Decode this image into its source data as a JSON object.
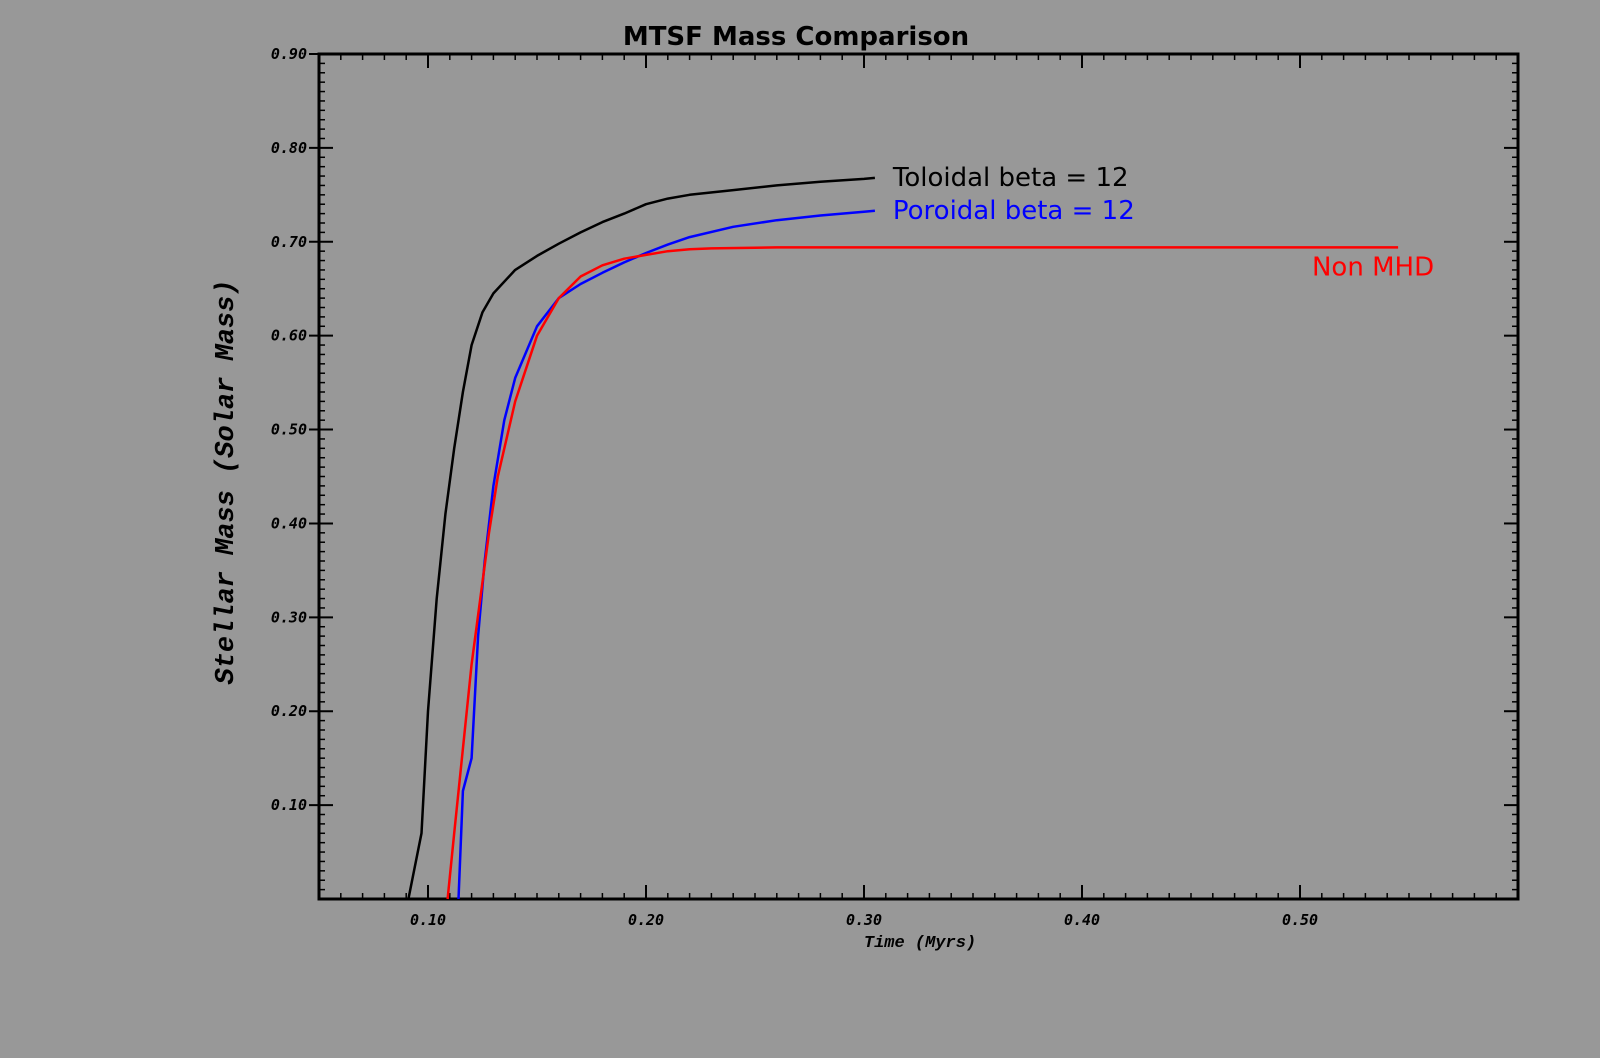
{
  "chart_data": {
    "type": "line",
    "title": "MTSF Mass Comparison",
    "xlabel": "Time (Myrs)",
    "ylabel": "Stellar Mass (Solar Mass)",
    "xlim": [
      0.05,
      0.6
    ],
    "ylim": [
      0.0,
      0.9
    ],
    "x_ticks": [
      {
        "value": 0.1,
        "label": "0.10"
      },
      {
        "value": 0.2,
        "label": "0.20"
      },
      {
        "value": 0.3,
        "label": "0.30"
      },
      {
        "value": 0.4,
        "label": "0.40"
      },
      {
        "value": 0.5,
        "label": "0.50"
      }
    ],
    "y_ticks": [
      {
        "value": 0.1,
        "label": "0.10"
      },
      {
        "value": 0.2,
        "label": "0.20"
      },
      {
        "value": 0.3,
        "label": "0.30"
      },
      {
        "value": 0.4,
        "label": "0.40"
      },
      {
        "value": 0.5,
        "label": "0.50"
      },
      {
        "value": 0.6,
        "label": "0.60"
      },
      {
        "value": 0.7,
        "label": "0.70"
      },
      {
        "value": 0.8,
        "label": "0.80"
      },
      {
        "value": 0.9,
        "label": "0.90"
      }
    ],
    "grid": false,
    "legend": "inline labels at series ends",
    "series": [
      {
        "name": "Toloidal beta = 12",
        "color": "#000000",
        "x": [
          0.091,
          0.097,
          0.1,
          0.104,
          0.108,
          0.112,
          0.116,
          0.12,
          0.125,
          0.13,
          0.14,
          0.15,
          0.16,
          0.17,
          0.18,
          0.19,
          0.2,
          0.21,
          0.22,
          0.24,
          0.26,
          0.28,
          0.3,
          0.305
        ],
        "y": [
          0.0,
          0.07,
          0.2,
          0.32,
          0.41,
          0.48,
          0.54,
          0.59,
          0.625,
          0.645,
          0.67,
          0.685,
          0.698,
          0.71,
          0.721,
          0.73,
          0.74,
          0.746,
          0.75,
          0.755,
          0.76,
          0.764,
          0.767,
          0.768
        ]
      },
      {
        "name": "Poroidal beta = 12",
        "color": "#0000ff",
        "x": [
          0.114,
          0.116,
          0.12,
          0.123,
          0.126,
          0.13,
          0.135,
          0.14,
          0.15,
          0.16,
          0.17,
          0.18,
          0.19,
          0.2,
          0.21,
          0.22,
          0.24,
          0.26,
          0.28,
          0.3,
          0.305
        ],
        "y": [
          0.0,
          0.115,
          0.15,
          0.28,
          0.36,
          0.44,
          0.51,
          0.555,
          0.61,
          0.64,
          0.655,
          0.667,
          0.678,
          0.688,
          0.697,
          0.705,
          0.716,
          0.723,
          0.728,
          0.732,
          0.733
        ]
      },
      {
        "name": "Non MHD",
        "color": "#ff0000",
        "x": [
          0.109,
          0.112,
          0.116,
          0.12,
          0.124,
          0.128,
          0.132,
          0.14,
          0.15,
          0.16,
          0.17,
          0.18,
          0.19,
          0.2,
          0.21,
          0.22,
          0.23,
          0.26,
          0.3,
          0.4,
          0.5,
          0.545
        ],
        "y": [
          0.0,
          0.07,
          0.16,
          0.25,
          0.32,
          0.39,
          0.45,
          0.53,
          0.6,
          0.64,
          0.663,
          0.675,
          0.682,
          0.686,
          0.69,
          0.692,
          0.693,
          0.694,
          0.694,
          0.694,
          0.694,
          0.694
        ]
      }
    ]
  }
}
